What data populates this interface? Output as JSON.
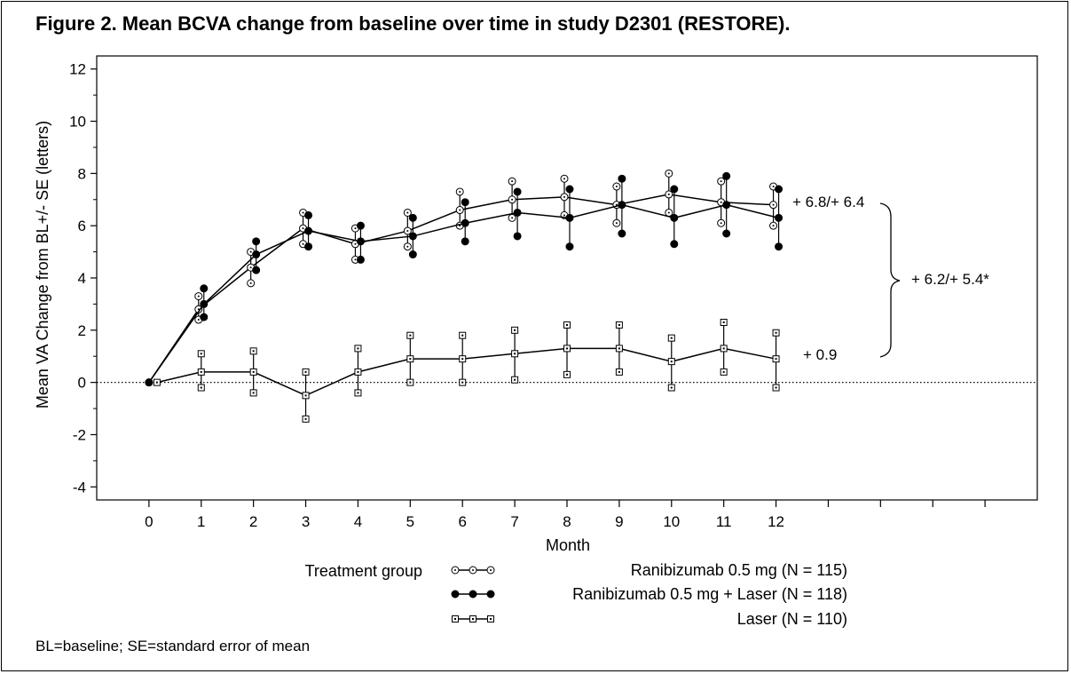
{
  "figure": {
    "title": "Figure 2.  Mean BCVA change from baseline over time in study D2301 (RESTORE).",
    "footnote": "BL=baseline; SE=standard error of mean"
  },
  "legend": {
    "heading": "Treatment group"
  },
  "chart_data": {
    "type": "line",
    "xlabel": "Month",
    "ylabel": "Mean VA Change from BL+/- SE (letters)",
    "xlim": [
      -1,
      17
    ],
    "ylim": [
      -4.5,
      12.5
    ],
    "x_ticks": [
      0,
      1,
      2,
      3,
      4,
      5,
      6,
      7,
      8,
      9,
      10,
      11,
      12
    ],
    "y_ticks": [
      -4,
      -2,
      0,
      2,
      4,
      6,
      8,
      10,
      12
    ],
    "reference_line": 0,
    "grid": false,
    "legend_position": "bottom",
    "series": [
      {
        "name": "Ranibizumab 0.5 mg (N = 115)",
        "marker": "open-circle",
        "x": [
          0,
          1,
          2,
          3,
          4,
          5,
          6,
          7,
          8,
          9,
          10,
          11,
          12
        ],
        "mean": [
          0,
          2.8,
          4.4,
          5.9,
          5.3,
          5.8,
          6.6,
          7.0,
          7.1,
          6.8,
          7.2,
          6.9,
          6.8
        ],
        "upper": [
          0,
          3.3,
          5.0,
          6.5,
          5.9,
          6.5,
          7.3,
          7.7,
          7.8,
          7.5,
          8.0,
          7.7,
          7.5
        ],
        "lower": [
          0,
          2.4,
          3.8,
          5.3,
          4.7,
          5.2,
          6.0,
          6.3,
          6.4,
          6.1,
          6.5,
          6.1,
          6.0
        ]
      },
      {
        "name": "Ranibizumab 0.5 mg + Laser (N = 118)",
        "marker": "filled-circle",
        "x": [
          0,
          1,
          2,
          3,
          4,
          5,
          6,
          7,
          8,
          9,
          10,
          11,
          12
        ],
        "mean": [
          0,
          3.0,
          4.9,
          5.8,
          5.4,
          5.6,
          6.1,
          6.5,
          6.3,
          6.8,
          6.3,
          6.8,
          6.3
        ],
        "upper": [
          0,
          3.6,
          5.4,
          6.4,
          6.0,
          6.3,
          6.9,
          7.3,
          7.4,
          7.8,
          7.4,
          7.9,
          7.4
        ],
        "lower": [
          0,
          2.5,
          4.3,
          5.2,
          4.7,
          4.9,
          5.4,
          5.6,
          5.2,
          5.7,
          5.3,
          5.7,
          5.2
        ]
      },
      {
        "name": "Laser (N = 110)",
        "marker": "open-square",
        "x": [
          0,
          1,
          2,
          3,
          4,
          5,
          6,
          7,
          8,
          9,
          10,
          11,
          12
        ],
        "mean": [
          0,
          0.4,
          0.4,
          -0.5,
          0.4,
          0.9,
          0.9,
          1.1,
          1.3,
          1.3,
          0.8,
          1.3,
          0.9
        ],
        "upper": [
          0,
          1.1,
          1.2,
          0.4,
          1.3,
          1.8,
          1.8,
          2.0,
          2.2,
          2.2,
          1.7,
          2.3,
          1.9
        ],
        "lower": [
          0,
          -0.2,
          -0.4,
          -1.4,
          -0.4,
          0.0,
          0.0,
          0.1,
          0.3,
          0.4,
          -0.2,
          0.4,
          -0.2
        ]
      }
    ],
    "annotations": [
      {
        "text": "+ 6.8/+ 6.4"
      },
      {
        "text": "+ 0.9"
      },
      {
        "text": "+ 6.2/+ 5.4*"
      }
    ]
  }
}
